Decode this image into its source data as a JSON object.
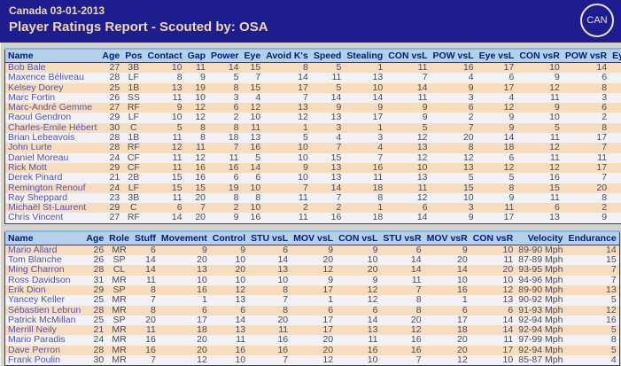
{
  "header": {
    "team_date": "Canada 03-01-2013",
    "title": "Player Ratings Report - Scouted by: OSA",
    "badge": "CAN"
  },
  "colors": {
    "topbar_bg": "#1d1d8f",
    "topbar_text": "#efd7ad",
    "table_header_bg": "#b4d0ea",
    "table_header_text": "#001a80",
    "row_beige": "#f7dcbd",
    "row_white": "#f2f2f6",
    "name_text": "#5353aa",
    "page_bg": "#d6d2c8"
  },
  "batters": {
    "columns": [
      "Name",
      "Age",
      "Pos",
      "Contact",
      "Gap",
      "Power",
      "Eye",
      "Avoid K's",
      "Speed",
      "Stealing",
      "CON vsL",
      "POW vsL",
      "Eye vsL",
      "CON vsR",
      "POW vsR",
      "Eye vsR"
    ],
    "rows": [
      [
        "Bob Bale",
        27,
        "3B",
        10,
        11,
        14,
        15,
        8,
        5,
        1,
        11,
        16,
        17,
        10,
        14,
        15
      ],
      [
        "Maxence Béliveau",
        28,
        "LF",
        8,
        9,
        5,
        7,
        14,
        11,
        13,
        7,
        4,
        6,
        9,
        6,
        8
      ],
      [
        "Kelsey Dorey",
        25,
        "1B",
        13,
        19,
        8,
        15,
        17,
        5,
        10,
        14,
        9,
        17,
        12,
        8,
        15
      ],
      [
        "Marc Fortin",
        26,
        "SS",
        11,
        10,
        3,
        4,
        7,
        14,
        14,
        11,
        3,
        4,
        11,
        3,
        4
      ],
      [
        "Marc-André Gemme",
        27,
        "RF",
        9,
        12,
        6,
        12,
        13,
        9,
        9,
        9,
        6,
        12,
        9,
        6,
        12
      ],
      [
        "Raoul Gendron",
        29,
        "LF",
        10,
        12,
        2,
        10,
        12,
        13,
        17,
        9,
        2,
        9,
        10,
        2,
        11
      ],
      [
        "Charles-Émile Hébert",
        30,
        "C",
        5,
        8,
        8,
        11,
        1,
        3,
        1,
        5,
        7,
        9,
        5,
        8,
        11
      ],
      [
        "Brian Lebeavois",
        28,
        "1B",
        11,
        8,
        18,
        13,
        5,
        4,
        3,
        12,
        20,
        14,
        11,
        17,
        12
      ],
      [
        "John Lurte",
        28,
        "RF",
        12,
        11,
        7,
        16,
        10,
        7,
        4,
        13,
        8,
        18,
        12,
        7,
        15
      ],
      [
        "Daniel Moreau",
        24,
        "CF",
        11,
        12,
        11,
        5,
        10,
        15,
        7,
        12,
        12,
        6,
        11,
        11,
        5
      ],
      [
        "Rick Mott",
        29,
        "CF",
        11,
        16,
        16,
        14,
        9,
        13,
        16,
        10,
        13,
        12,
        12,
        17,
        15
      ],
      [
        "Derek Pinard",
        21,
        "2B",
        15,
        16,
        6,
        6,
        10,
        13,
        11,
        13,
        5,
        5,
        16,
        7,
        6
      ],
      [
        "Remington Renouf",
        24,
        "LF",
        15,
        15,
        19,
        10,
        7,
        14,
        18,
        11,
        15,
        8,
        15,
        20,
        11
      ],
      [
        "Ray Sheppard",
        23,
        "3B",
        11,
        20,
        8,
        8,
        11,
        7,
        8,
        12,
        10,
        9,
        11,
        8,
        7
      ],
      [
        "Michaël St-Laurent",
        29,
        "C",
        6,
        7,
        2,
        10,
        2,
        2,
        1,
        6,
        3,
        11,
        6,
        2,
        9
      ],
      [
        "Chris Vincent",
        27,
        "RF",
        14,
        20,
        9,
        16,
        11,
        16,
        18,
        14,
        9,
        17,
        13,
        9,
        16
      ]
    ]
  },
  "pitchers": {
    "columns": [
      "Name",
      "Age",
      "Role",
      "Stuff",
      "Movement",
      "Control",
      "STU vsL",
      "MOV vsL",
      "CON vsL",
      "STU vsR",
      "MOV vsR",
      "CON vsR",
      "Velocity",
      "Endurance"
    ],
    "rows": [
      [
        "Mario Allard",
        26,
        "MR",
        6,
        9,
        9,
        6,
        9,
        9,
        6,
        9,
        10,
        "89-90 Mph",
        14
      ],
      [
        "Tom Blanche",
        26,
        "SP",
        14,
        20,
        10,
        14,
        20,
        10,
        14,
        20,
        11,
        "87-89 Mph",
        15
      ],
      [
        "Ming Charron",
        28,
        "CL",
        14,
        13,
        20,
        13,
        12,
        20,
        14,
        14,
        20,
        "93-95 Mph",
        7
      ],
      [
        "Ross Davidson",
        31,
        "MR",
        11,
        10,
        10,
        10,
        9,
        9,
        11,
        10,
        10,
        "94-96 Mph",
        7
      ],
      [
        "Érik Dion",
        29,
        "SP",
        8,
        16,
        12,
        8,
        17,
        12,
        7,
        16,
        12,
        "89-90 Mph",
        13
      ],
      [
        "Yancey Keller",
        25,
        "MR",
        7,
        1,
        13,
        7,
        1,
        12,
        8,
        1,
        13,
        "90-92 Mph",
        5
      ],
      [
        "Sébastien Lebrun",
        28,
        "MR",
        8,
        6,
        6,
        8,
        6,
        6,
        8,
        6,
        6,
        "91-93 Mph",
        12
      ],
      [
        "Patrick McMillan",
        25,
        "SP",
        20,
        17,
        14,
        20,
        17,
        14,
        20,
        17,
        14,
        "92-94 Mph",
        16
      ],
      [
        "Merrill Neily",
        21,
        "MR",
        11,
        18,
        13,
        11,
        17,
        13,
        12,
        18,
        14,
        "92-94 Mph",
        5
      ],
      [
        "Mario Paradis",
        24,
        "MR",
        16,
        20,
        11,
        16,
        20,
        11,
        16,
        20,
        11,
        "97-99 Mph",
        8
      ],
      [
        "Dave Perron",
        28,
        "MR",
        16,
        20,
        16,
        16,
        20,
        16,
        16,
        20,
        17,
        "92-94 Mph",
        5
      ],
      [
        "Frank Poulin",
        30,
        "MR",
        7,
        12,
        10,
        7,
        12,
        10,
        7,
        12,
        10,
        "85-87 Mph",
        4
      ]
    ]
  }
}
